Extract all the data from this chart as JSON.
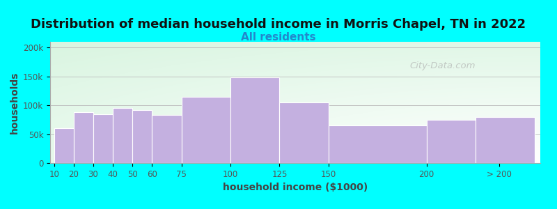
{
  "title": "Distribution of median household income in Morris Chapel, TN in 2022",
  "subtitle": "All residents",
  "xlabel": "household income ($1000)",
  "ylabel": "households",
  "background_color": "#00FFFF",
  "bar_color": "#C4B0E0",
  "bar_edge_color": "#FFFFFF",
  "title_fontsize": 13,
  "subtitle_fontsize": 11,
  "subtitle_color": "#2288CC",
  "axis_label_fontsize": 10,
  "bar_lefts": [
    10,
    20,
    30,
    40,
    50,
    60,
    75,
    100,
    125,
    150,
    200,
    225
  ],
  "bar_rights": [
    20,
    30,
    40,
    50,
    60,
    75,
    100,
    125,
    150,
    200,
    225,
    255
  ],
  "values": [
    60000,
    88000,
    85000,
    95000,
    92000,
    83000,
    115000,
    148000,
    105000,
    65000,
    75000,
    80000
  ],
  "yticks": [
    0,
    50000,
    100000,
    150000,
    200000
  ],
  "ytick_labels": [
    "0",
    "50k",
    "100k",
    "150k",
    "200k"
  ],
  "xtick_positions": [
    10,
    20,
    30,
    40,
    50,
    60,
    75,
    100,
    125,
    150,
    200,
    237
  ],
  "xtick_labels": [
    "10",
    "20",
    "30",
    "40",
    "50",
    "60",
    "75",
    "100",
    "125",
    "150",
    "200",
    "> 200"
  ],
  "xlim": [
    8,
    258
  ],
  "ylim": [
    0,
    210000
  ],
  "watermark": "City-Data.com"
}
